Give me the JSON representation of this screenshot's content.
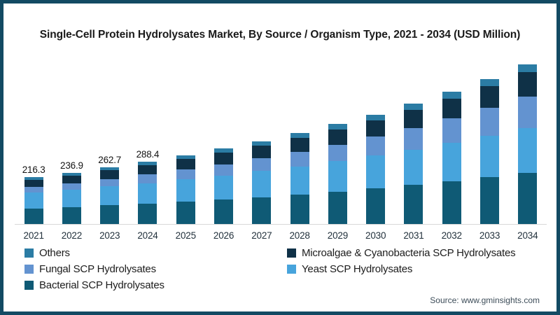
{
  "chart_data": {
    "type": "bar",
    "stacked": true,
    "title": "Single-Cell Protein Hydrolysates Market, By Source / Organism Type, 2021 - 2034 (USD Million)",
    "unit": "USD Million",
    "categories": [
      "2021",
      "2022",
      "2023",
      "2024",
      "2025",
      "2026",
      "2027",
      "2028",
      "2029",
      "2030",
      "2031",
      "2032",
      "2033",
      "2034"
    ],
    "series": [
      {
        "name": "Bacterial SCP Hydrolysates",
        "color_key": "bacterial",
        "values": [
          70.9,
          77.6,
          85.9,
          94.2,
          103.3,
          113.2,
          124.1,
          136.1,
          149.1,
          163.5,
          179.3,
          196.7,
          215.8,
          236.5
        ]
      },
      {
        "name": "Yeast SCP Hydrolysates",
        "color_key": "yeast",
        "values": [
          74.0,
          79.9,
          87.4,
          94.6,
          102.3,
          110.7,
          119.7,
          129.5,
          140.1,
          151.4,
          163.6,
          176.8,
          191.1,
          206.4
        ]
      },
      {
        "name": "Fungal SCP Hydrolysates",
        "color_key": "fungal",
        "values": [
          25.3,
          29.2,
          34.0,
          39.1,
          44.9,
          51.5,
          58.9,
          67.3,
          76.8,
          87.4,
          99.4,
          113.0,
          128.3,
          145.4
        ]
      },
      {
        "name": "Microalgae & Cyanobacteria SCP Hydrolysates",
        "color_key": "microalgae",
        "values": [
          33.1,
          36.2,
          40.1,
          44.0,
          48.2,
          52.9,
          58.0,
          63.7,
          69.8,
          76.6,
          84.0,
          92.1,
          101.1,
          110.9
        ]
      },
      {
        "name": "Others",
        "color_key": "others",
        "values": [
          13.0,
          14.0,
          15.3,
          16.5,
          17.8,
          19.2,
          20.8,
          22.4,
          24.2,
          26.1,
          28.2,
          30.4,
          32.7,
          35.3
        ]
      }
    ],
    "totals": [
      216.3,
      236.9,
      262.7,
      288.4,
      316.5,
      347.5,
      381.5,
      419.0,
      460.0,
      505.0,
      554.5,
      609.0,
      669.0,
      734.5
    ],
    "total_labels": [
      "216.3",
      "236.9",
      "262.7",
      "288.4",
      "",
      "",
      "",
      "",
      "",
      "",
      "",
      "",
      "",
      ""
    ],
    "value_axis_visible": false,
    "grid": false,
    "legend_position": "bottom"
  },
  "colors": {
    "bacterial": "#0f5a75",
    "yeast": "#47a4dc",
    "fungal": "#6393d0",
    "microalgae": "#0f3147",
    "others": "#2b7ca4",
    "border": "#134a63",
    "axis_line": "#d8d8d8"
  },
  "legend": {
    "items": [
      {
        "label": "Others",
        "color_key": "others"
      },
      {
        "label": "Microalgae & Cyanobacteria SCP Hydrolysates",
        "color_key": "microalgae"
      },
      {
        "label": "Fungal SCP Hydrolysates",
        "color_key": "fungal"
      },
      {
        "label": "Yeast SCP Hydrolysates",
        "color_key": "yeast"
      },
      {
        "label": "Bacterial SCP Hydrolysates",
        "color_key": "bacterial"
      }
    ]
  },
  "footer": {
    "source": "Source: www.gminsights.com"
  }
}
